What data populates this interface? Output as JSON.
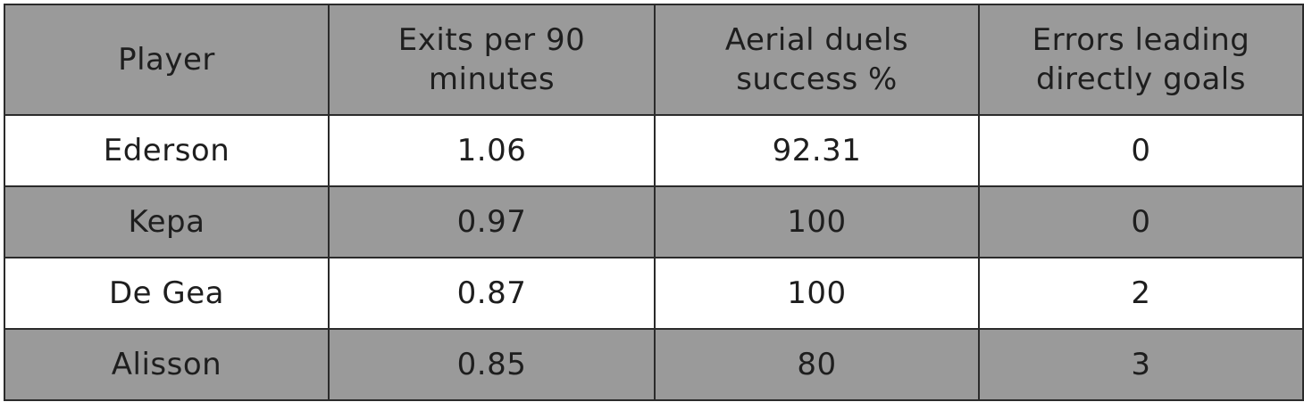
{
  "table": {
    "headers": [
      "Player",
      "Exits per 90 minutes",
      "Aerial duels success %",
      "Errors leading directly goals"
    ],
    "rows": [
      [
        "Ederson",
        "1.06",
        "92.31",
        "0"
      ],
      [
        "Kepa",
        "0.97",
        "100",
        "0"
      ],
      [
        "De Gea",
        "0.87",
        "100",
        "2"
      ],
      [
        "Alisson",
        "0.85",
        "80",
        "3"
      ]
    ]
  },
  "colors": {
    "header_background": "#9a9a9a",
    "odd_row_background": "#ffffff",
    "even_row_background": "#9a9a9a",
    "border": "#2b2b2b",
    "text": "#1e1e1e"
  },
  "chart_data": {
    "type": "table",
    "columns": [
      "Player",
      "Exits per 90 minutes",
      "Aerial duels success %",
      "Errors leading directly goals"
    ],
    "rows": [
      {
        "Player": "Ederson",
        "Exits per 90 minutes": 1.06,
        "Aerial duels success %": 92.31,
        "Errors leading directly goals": 0
      },
      {
        "Player": "Kepa",
        "Exits per 90 minutes": 0.97,
        "Aerial duels success %": 100,
        "Errors leading directly goals": 0
      },
      {
        "Player": "De Gea",
        "Exits per 90 minutes": 0.87,
        "Aerial duels success %": 100,
        "Errors leading directly goals": 2
      },
      {
        "Player": "Alisson",
        "Exits per 90 minutes": 0.85,
        "Aerial duels success %": 80,
        "Errors leading directly goals": 3
      }
    ]
  }
}
